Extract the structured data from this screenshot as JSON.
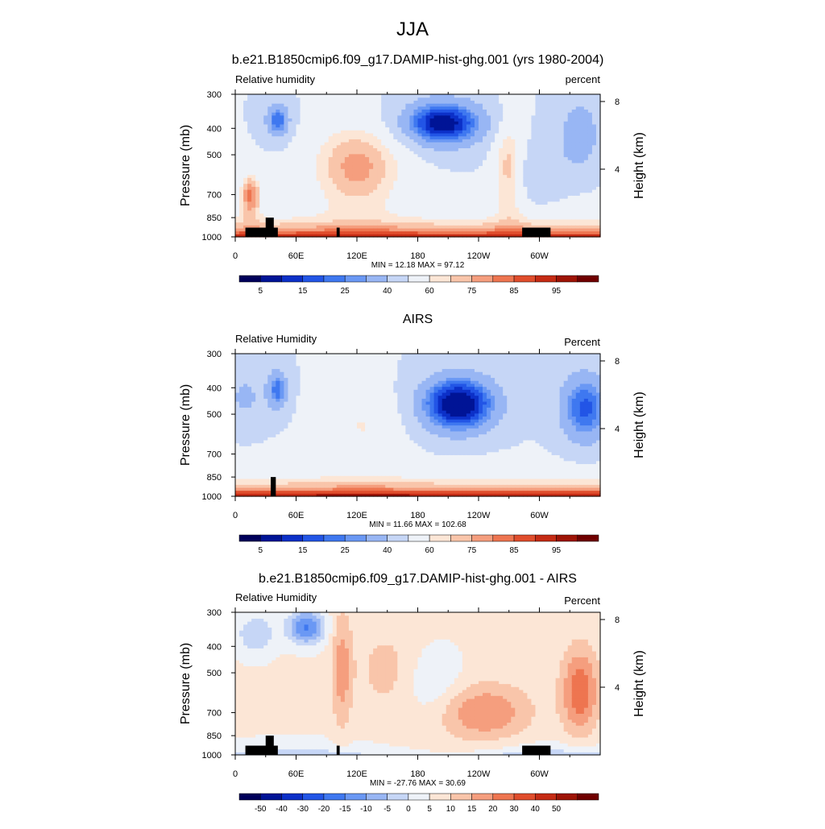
{
  "figure_title": "JJA",
  "chart_data": [
    {
      "type": "heatmap",
      "title": "b.e21.B1850cmip6.f09_g17.DAMIP-hist-ghg.001 (yrs 1980-2004)",
      "left_string": "Relative humidity",
      "right_string": "percent",
      "ylabel": "Pressure (mb)",
      "ylabel_right": "Height (km)",
      "x_ticks": [
        "0",
        "60E",
        "120E",
        "180",
        "120W",
        "60W"
      ],
      "x_tick_lon": [
        0,
        60,
        120,
        180,
        240,
        300
      ],
      "xlim": [
        0,
        360
      ],
      "y_ticks": [
        "300",
        "400",
        "500",
        "700",
        "850",
        "1000"
      ],
      "y_tick_values": [
        300,
        400,
        500,
        700,
        850,
        1000
      ],
      "ylim": [
        1000,
        300
      ],
      "y_scale": "log",
      "height_ticks": [
        "8",
        "4"
      ],
      "height_tick_km": [
        8,
        4
      ],
      "stats": "MIN =  12.18  MAX =  97.12",
      "min": 12.18,
      "max": 97.12,
      "colorbar_labels": [
        "5",
        "15",
        "25",
        "40",
        "60",
        "75",
        "85",
        "95"
      ],
      "colorbar_levels": [
        5,
        10,
        15,
        20,
        25,
        30,
        40,
        50,
        60,
        65,
        70,
        75,
        80,
        85,
        90,
        95
      ],
      "field": "model"
    },
    {
      "type": "heatmap",
      "title": "AIRS",
      "left_string": "Relative Humidity",
      "right_string": "Percent",
      "ylabel": "Pressure (mb)",
      "ylabel_right": "Height (km)",
      "x_ticks": [
        "0",
        "60E",
        "120E",
        "180",
        "120W",
        "60W"
      ],
      "x_tick_lon": [
        0,
        60,
        120,
        180,
        240,
        300
      ],
      "xlim": [
        0,
        360
      ],
      "y_ticks": [
        "300",
        "400",
        "500",
        "700",
        "850",
        "1000"
      ],
      "y_tick_values": [
        300,
        400,
        500,
        700,
        850,
        1000
      ],
      "ylim": [
        1000,
        300
      ],
      "y_scale": "log",
      "height_ticks": [
        "8",
        "4"
      ],
      "height_tick_km": [
        8,
        4
      ],
      "stats": "MIN =  11.66  MAX = 102.68",
      "min": 11.66,
      "max": 102.68,
      "colorbar_labels": [
        "5",
        "15",
        "25",
        "40",
        "60",
        "75",
        "85",
        "95"
      ],
      "colorbar_levels": [
        5,
        10,
        15,
        20,
        25,
        30,
        40,
        50,
        60,
        65,
        70,
        75,
        80,
        85,
        90,
        95
      ],
      "field": "obs"
    },
    {
      "type": "heatmap",
      "title": "b.e21.B1850cmip6.f09_g17.DAMIP-hist-ghg.001 - AIRS",
      "left_string": "Relative Humidity",
      "right_string": "Percent",
      "ylabel": "Pressure (mb)",
      "ylabel_right": "Height (km)",
      "x_ticks": [
        "0",
        "60E",
        "120E",
        "180",
        "120W",
        "60W"
      ],
      "x_tick_lon": [
        0,
        60,
        120,
        180,
        240,
        300
      ],
      "xlim": [
        0,
        360
      ],
      "y_ticks": [
        "300",
        "400",
        "500",
        "700",
        "850",
        "1000"
      ],
      "y_tick_values": [
        300,
        400,
        500,
        700,
        850,
        1000
      ],
      "ylim": [
        1000,
        300
      ],
      "y_scale": "log",
      "height_ticks": [
        "8",
        "4"
      ],
      "height_tick_km": [
        8,
        4
      ],
      "stats": "MIN = -27.76  MAX =  30.69",
      "min": -27.76,
      "max": 30.69,
      "colorbar_labels": [
        "-50",
        "-40",
        "-30",
        "-20",
        "-15",
        "-10",
        "-5",
        "0",
        "5",
        "10",
        "15",
        "20",
        "30",
        "40",
        "50"
      ],
      "colorbar_levels": [
        -50,
        -40,
        -30,
        -20,
        -15,
        -10,
        -5,
        0,
        5,
        10,
        15,
        20,
        30,
        40,
        50
      ],
      "field": "diff"
    }
  ],
  "colors": {
    "colormap": [
      "#00005a",
      "#001496",
      "#0c30c8",
      "#2255e6",
      "#3f78f0",
      "#6a98f4",
      "#98b6f4",
      "#c6d6f6",
      "#eef2f8",
      "#fce6d6",
      "#f9c5aa",
      "#f59e7e",
      "#ee7550",
      "#e04d2c",
      "#c52b14",
      "#9e1406",
      "#700000"
    ],
    "terrain": "#000000"
  }
}
